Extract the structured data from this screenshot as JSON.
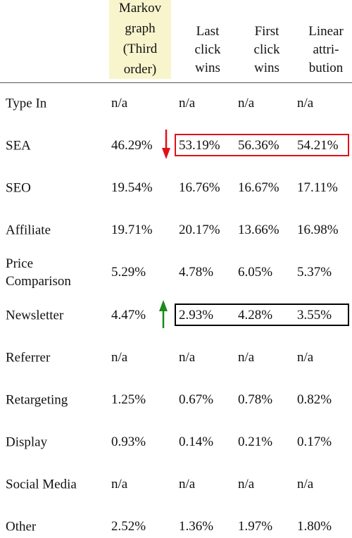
{
  "table": {
    "columns": [
      [
        "Markov",
        "graph",
        "(Third",
        "order)"
      ],
      [
        "Last",
        "click",
        "wins"
      ],
      [
        "First",
        "click",
        "wins"
      ],
      [
        "Linear",
        "attri-",
        "bution"
      ]
    ],
    "rows": [
      [
        "Type In",
        "n/a",
        "n/a",
        "n/a",
        "n/a"
      ],
      [
        "SEA",
        "46.29%",
        "53.19%",
        "56.36%",
        "54.21%"
      ],
      [
        "SEO",
        "19.54%",
        "16.76%",
        "16.67%",
        "17.11%"
      ],
      [
        "Affiliate",
        "19.71%",
        "20.17%",
        "13.66%",
        "16.98%"
      ],
      [
        "Price Comparison",
        "5.29%",
        "4.78%",
        "6.05%",
        "5.37%"
      ],
      [
        "Newsletter",
        "4.47%",
        "2.93%",
        "4.28%",
        "3.55%"
      ],
      [
        "Referrer",
        "n/a",
        "n/a",
        "n/a",
        "n/a"
      ],
      [
        "Retargeting",
        "1.25%",
        "0.67%",
        "0.78%",
        "0.82%"
      ],
      [
        "Display",
        "0.93%",
        "0.14%",
        "0.21%",
        "0.17%"
      ],
      [
        "Social Media",
        "n/a",
        "n/a",
        "n/a",
        "n/a"
      ],
      [
        "Other",
        "2.52%",
        "1.36%",
        "1.97%",
        "1.80%"
      ]
    ]
  }
}
